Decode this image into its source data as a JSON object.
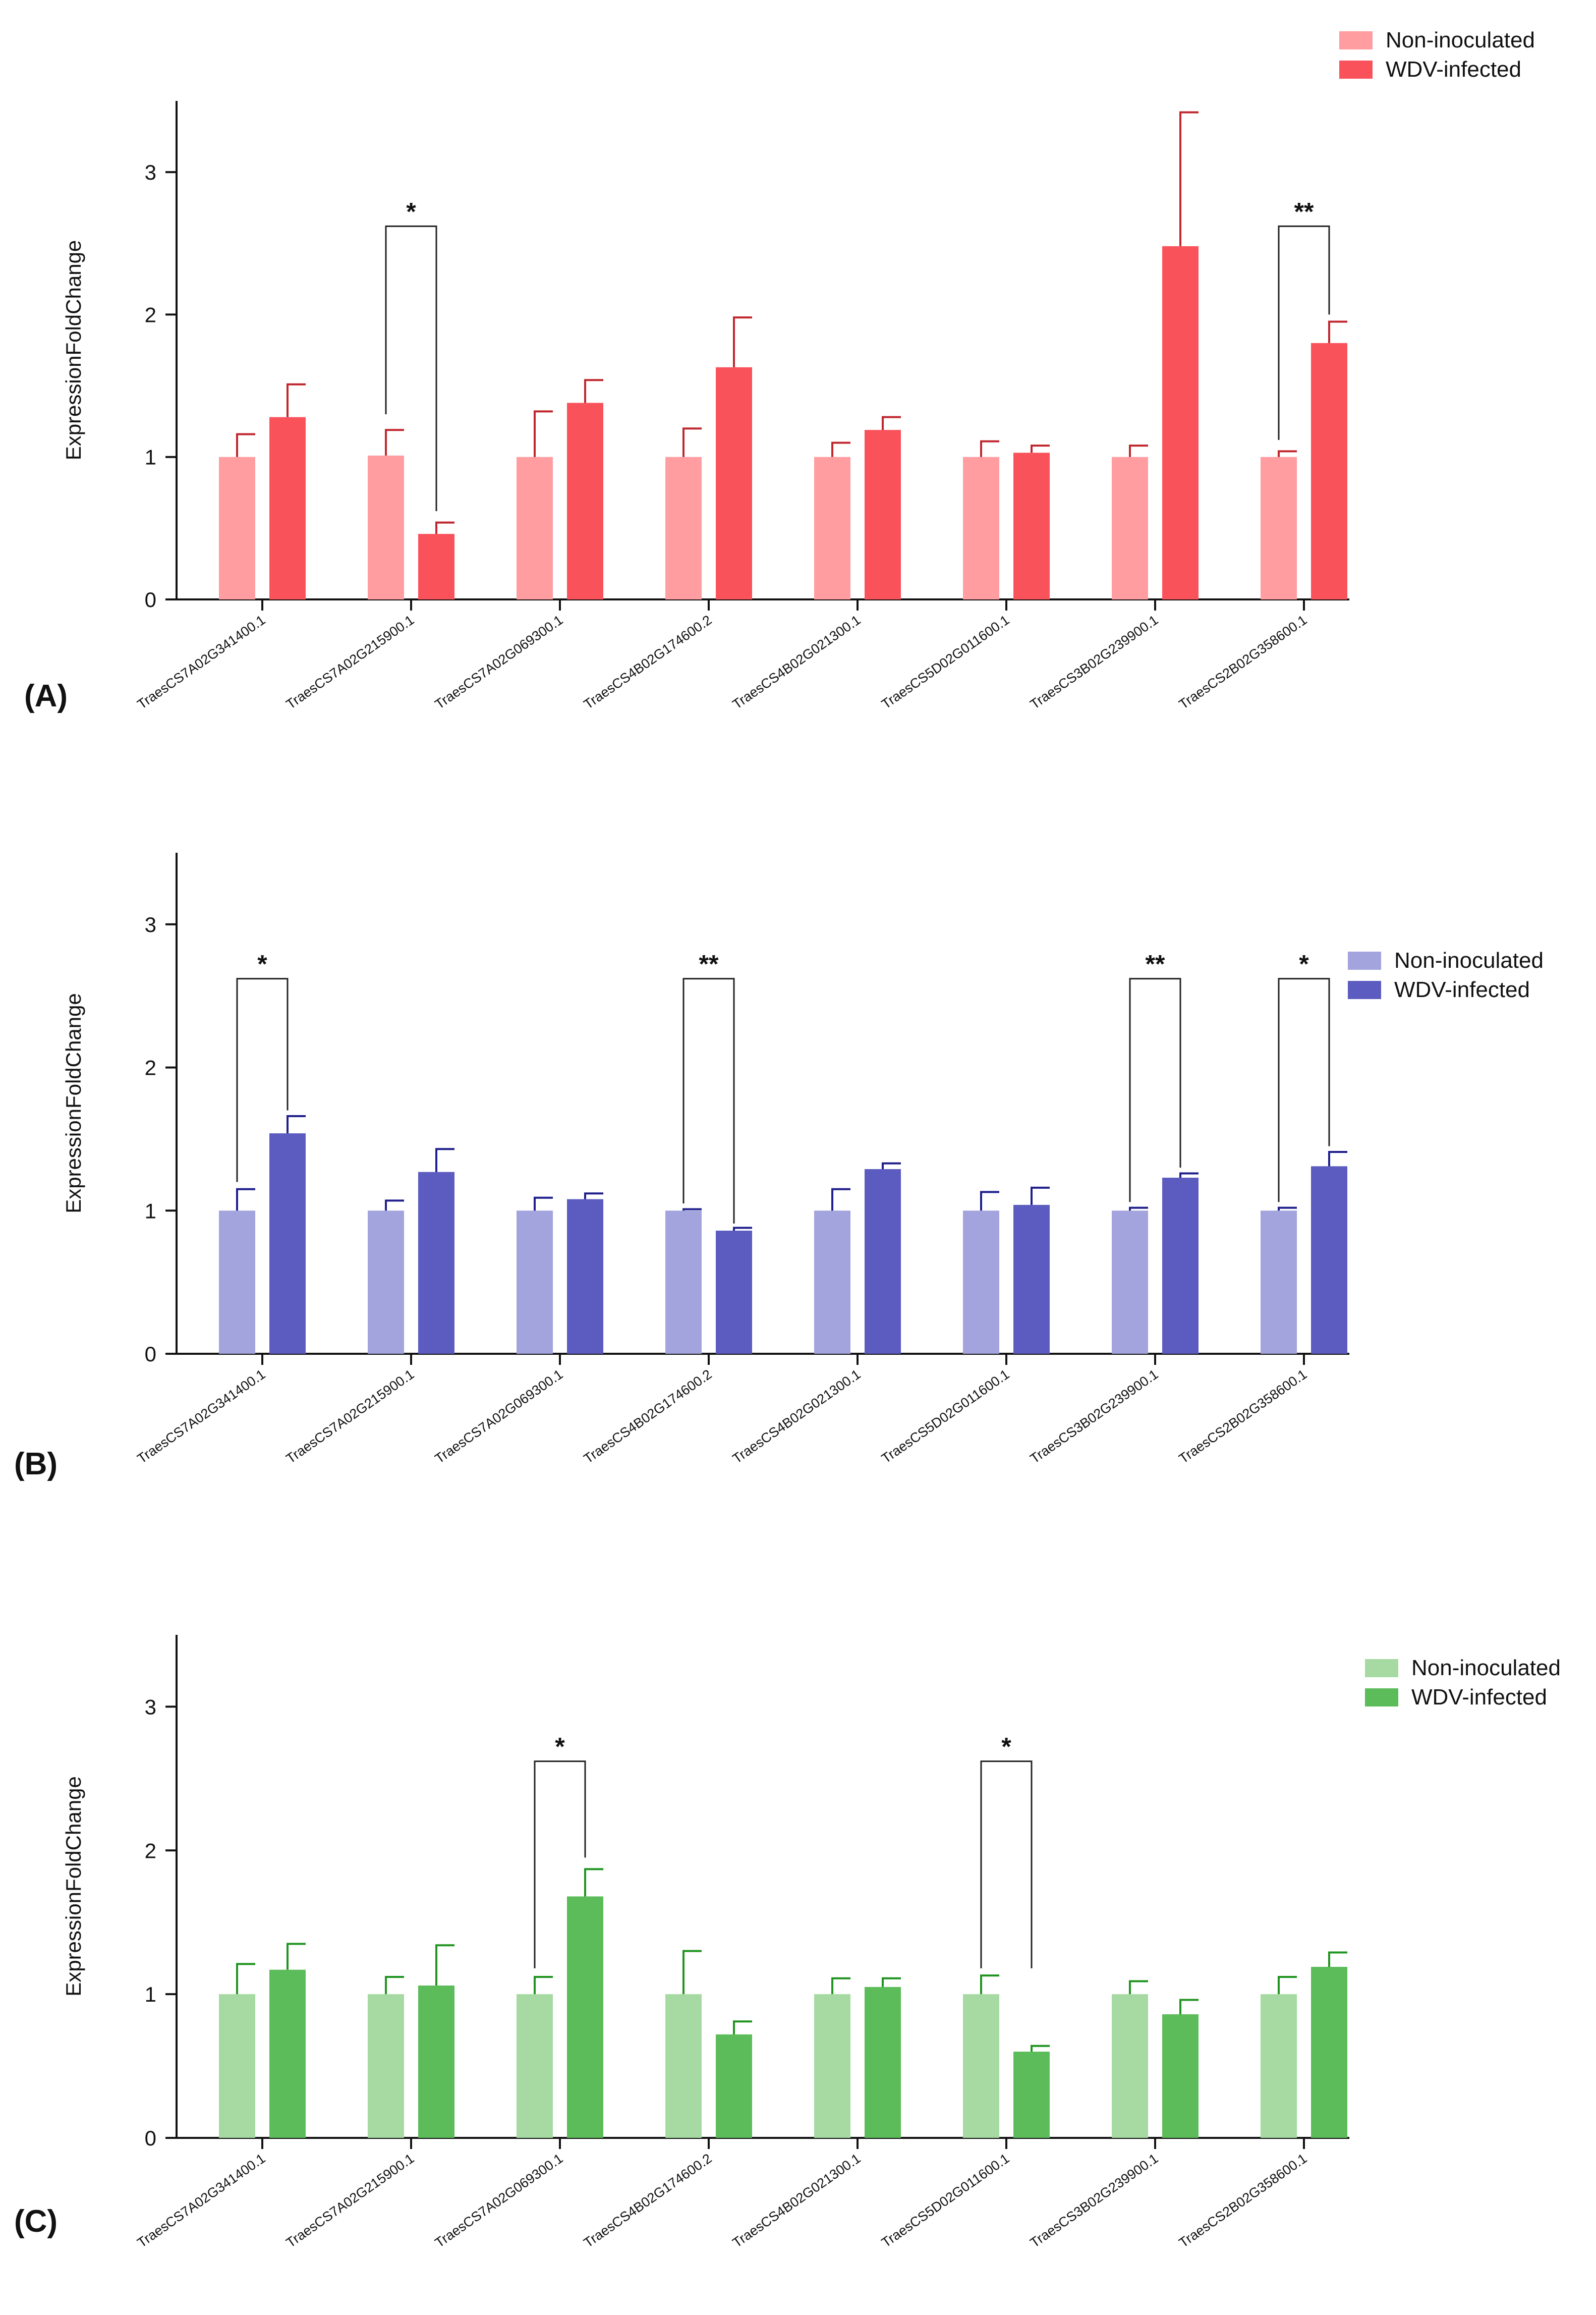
{
  "chart_data": [
    {
      "type": "bar",
      "panel_label": "(A)",
      "ylabel": "ExpressionFoldChange",
      "xlabel": "",
      "ylim": [
        0,
        3.5
      ],
      "yticks": [
        "0",
        "1",
        "2",
        "3"
      ],
      "categories": [
        "TraesCS7A02G341400.1",
        "TraesCS7A02G215900.1",
        "TraesCS7A02G069300.1",
        "TraesCS4B02G174600.2",
        "TraesCS4B02G021300.1",
        "TraesCS5D02G011600.1",
        "TraesCS3B02G239900.1",
        "TraesCS2B02G358600.1"
      ],
      "series": [
        {
          "name": "Non-inoculated",
          "color": "#FF9DA1",
          "error_color": "#C0262D",
          "values": [
            1,
            1.01,
            1,
            1,
            1,
            1,
            1,
            1
          ],
          "errors": [
            0.16,
            0.18,
            0.32,
            0.2,
            0.1,
            0.11,
            0.08,
            0.04
          ]
        },
        {
          "name": "WDV-infected",
          "color": "#FA525B",
          "error_color": "#C0262D",
          "values": [
            1.28,
            0.46,
            1.38,
            1.63,
            1.19,
            1.03,
            2.48,
            1.8
          ],
          "errors": [
            0.23,
            0.08,
            0.16,
            0.35,
            0.09,
            0.05,
            0.94,
            0.15
          ]
        }
      ],
      "significance": [
        {
          "category_index": 1,
          "label": "*",
          "bracket_y": 2.62,
          "left_end": 1.3,
          "right_end": 0.62
        },
        {
          "category_index": 7,
          "label": "**",
          "bracket_y": 2.62,
          "left_end": 1.12,
          "right_end": 2.0
        }
      ],
      "legend_position": "top-right"
    },
    {
      "type": "bar",
      "panel_label": "(B)",
      "ylabel": "ExpressionFoldChange",
      "xlabel": "",
      "ylim": [
        0,
        3.5
      ],
      "yticks": [
        "0",
        "1",
        "2",
        "3"
      ],
      "categories": [
        "TraesCS7A02G341400.1",
        "TraesCS7A02G215900.1",
        "TraesCS7A02G069300.1",
        "TraesCS4B02G174600.2",
        "TraesCS4B02G021300.1",
        "TraesCS5D02G011600.1",
        "TraesCS3B02G239900.1",
        "TraesCS2B02G358600.1"
      ],
      "series": [
        {
          "name": "Non-inoculated",
          "color": "#A3A3DD",
          "error_color": "#1E1E8C",
          "values": [
            1,
            1,
            1,
            1,
            1,
            1,
            1,
            1
          ],
          "errors": [
            0.15,
            0.07,
            0.09,
            0.01,
            0.15,
            0.13,
            0.02,
            0.02
          ]
        },
        {
          "name": "WDV-infected",
          "color": "#5B5BC0",
          "error_color": "#1E1E8C",
          "values": [
            1.54,
            1.27,
            1.08,
            0.86,
            1.29,
            1.04,
            1.23,
            1.31
          ],
          "errors": [
            0.12,
            0.16,
            0.04,
            0.02,
            0.04,
            0.12,
            0.03,
            0.1
          ]
        }
      ],
      "significance": [
        {
          "category_index": 0,
          "label": "*",
          "bracket_y": 2.62,
          "left_end": 1.2,
          "right_end": 1.7
        },
        {
          "category_index": 3,
          "label": "**",
          "bracket_y": 2.62,
          "left_end": 1.05,
          "right_end": 0.91
        },
        {
          "category_index": 6,
          "label": "**",
          "bracket_y": 2.62,
          "left_end": 1.06,
          "right_end": 1.3
        },
        {
          "category_index": 7,
          "label": "*",
          "bracket_y": 2.62,
          "left_end": 1.06,
          "right_end": 1.45
        }
      ],
      "legend_position": "right"
    },
    {
      "type": "bar",
      "panel_label": "(C)",
      "ylabel": "ExpressionFoldChange",
      "xlabel": "",
      "ylim": [
        0,
        3.5
      ],
      "yticks": [
        "0",
        "1",
        "2",
        "3"
      ],
      "categories": [
        "TraesCS7A02G341400.1",
        "TraesCS7A02G215900.1",
        "TraesCS7A02G069300.1",
        "TraesCS4B02G174600.2",
        "TraesCS4B02G021300.1",
        "TraesCS5D02G011600.1",
        "TraesCS3B02G239900.1",
        "TraesCS2B02G358600.1"
      ],
      "series": [
        {
          "name": "Non-inoculated",
          "color": "#A6DAA2",
          "error_color": "#1F941F",
          "values": [
            1,
            1,
            1,
            1,
            1,
            1,
            1,
            1
          ],
          "errors": [
            0.21,
            0.12,
            0.12,
            0.3,
            0.11,
            0.13,
            0.09,
            0.12
          ]
        },
        {
          "name": "WDV-infected",
          "color": "#5BBC59",
          "error_color": "#1F941F",
          "values": [
            1.17,
            1.06,
            1.68,
            0.72,
            1.05,
            0.6,
            0.86,
            1.19
          ],
          "errors": [
            0.18,
            0.28,
            0.19,
            0.09,
            0.06,
            0.04,
            0.1,
            0.1
          ]
        }
      ],
      "significance": [
        {
          "category_index": 2,
          "label": "*",
          "bracket_y": 2.62,
          "left_end": 1.18,
          "right_end": 1.95
        },
        {
          "category_index": 5,
          "label": "*",
          "bracket_y": 2.62,
          "left_end": 1.18,
          "right_end": 1.18
        }
      ],
      "legend_position": "right"
    }
  ]
}
